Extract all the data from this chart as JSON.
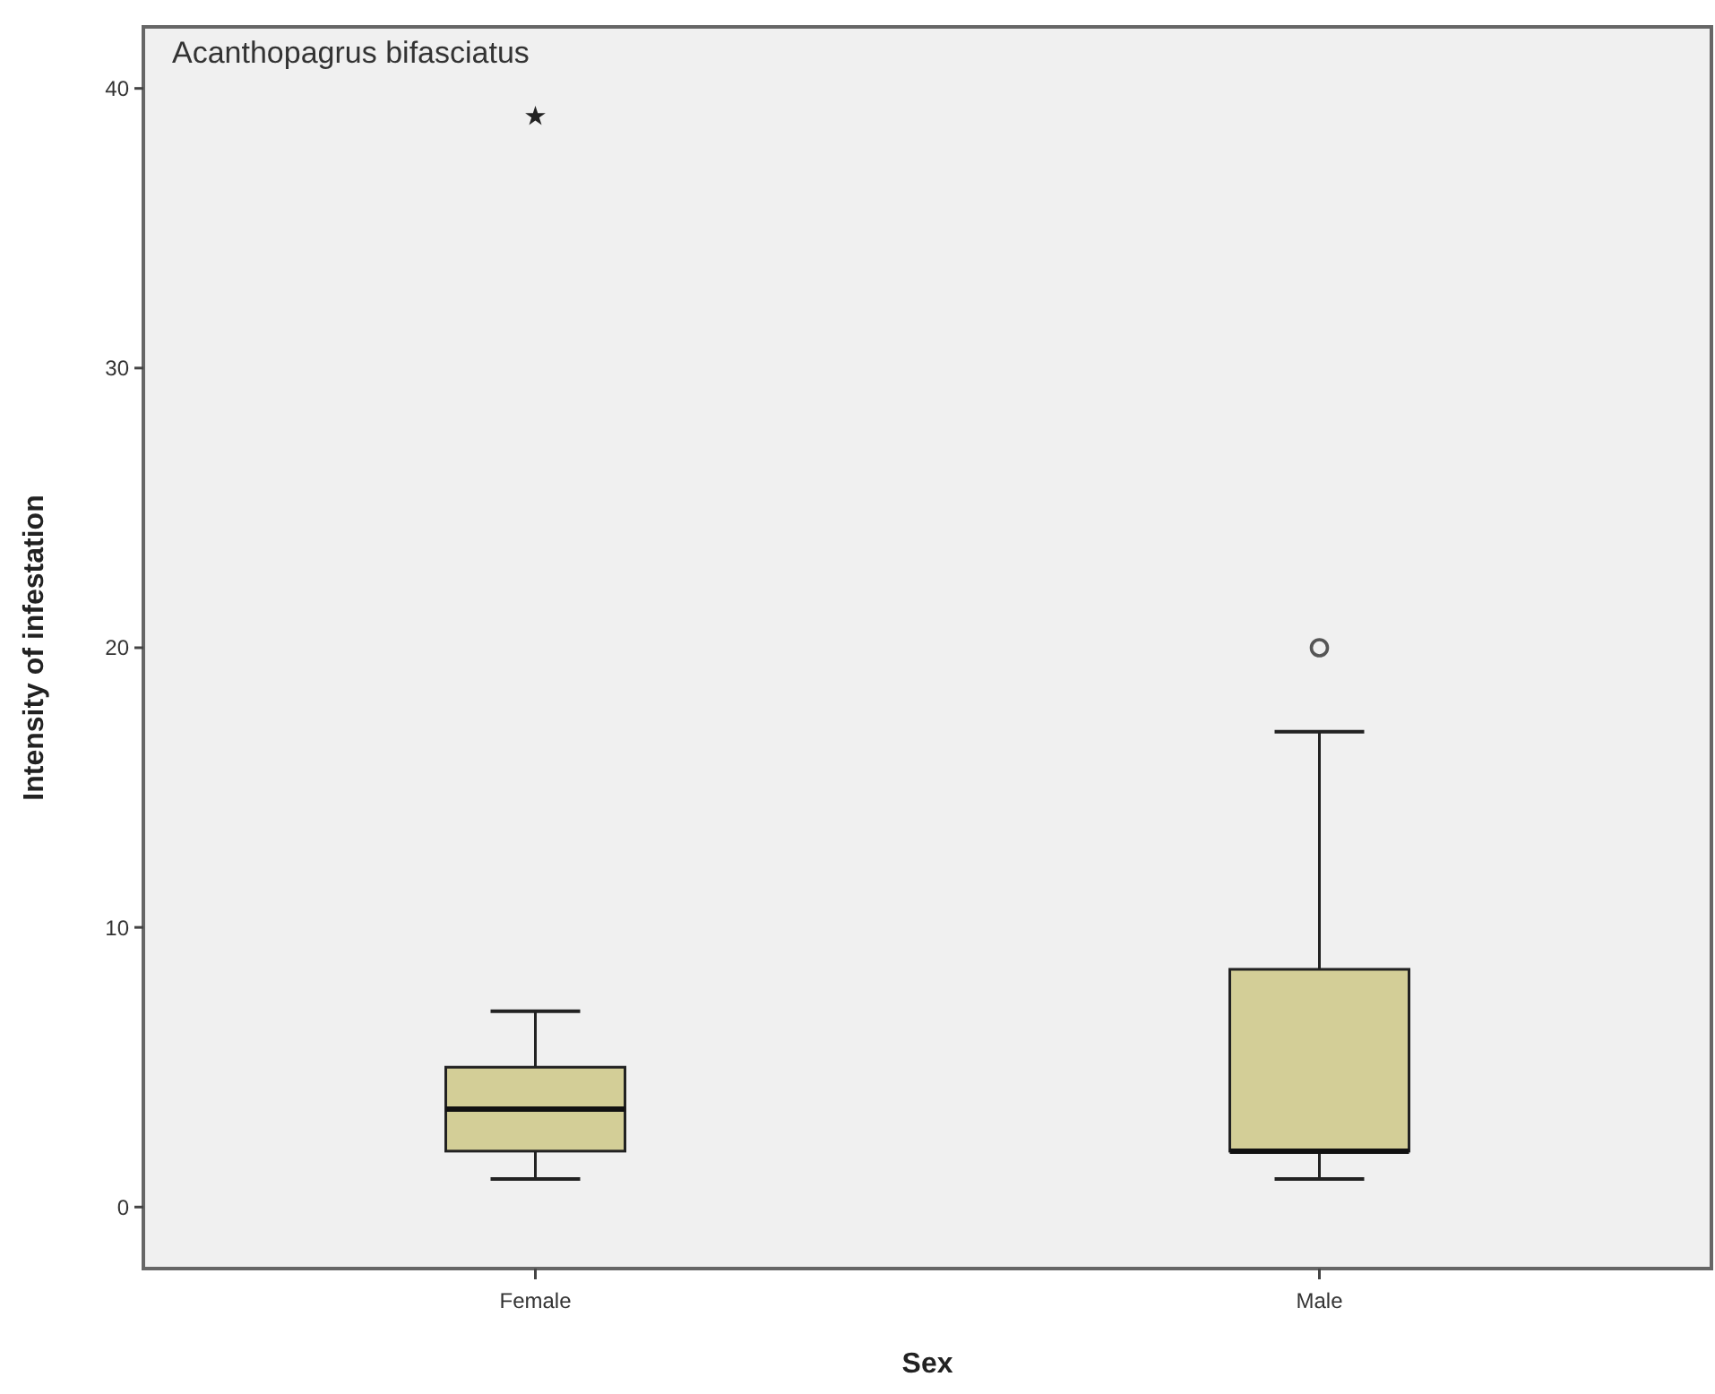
{
  "chart_data": {
    "type": "box",
    "xlabel": "Sex",
    "ylabel": "Intensity of infestation",
    "annotations": [
      "Acanthopagrus bifasciatus"
    ],
    "categories": [
      "Female",
      "Male"
    ],
    "color": "#d3ce97",
    "ylim": [
      -2.2,
      42.2
    ],
    "yticks": [
      0,
      10,
      20,
      30,
      40
    ],
    "grid": false,
    "boxes": [
      {
        "low": 1,
        "q1": 2,
        "median": 3.5,
        "q3": 5,
        "high": 7,
        "outliers": [
          39
        ]
      },
      {
        "low": 1,
        "q1": 2,
        "median": 2,
        "q3": 8.5,
        "high": 17,
        "outliers": [
          20
        ]
      }
    ]
  }
}
